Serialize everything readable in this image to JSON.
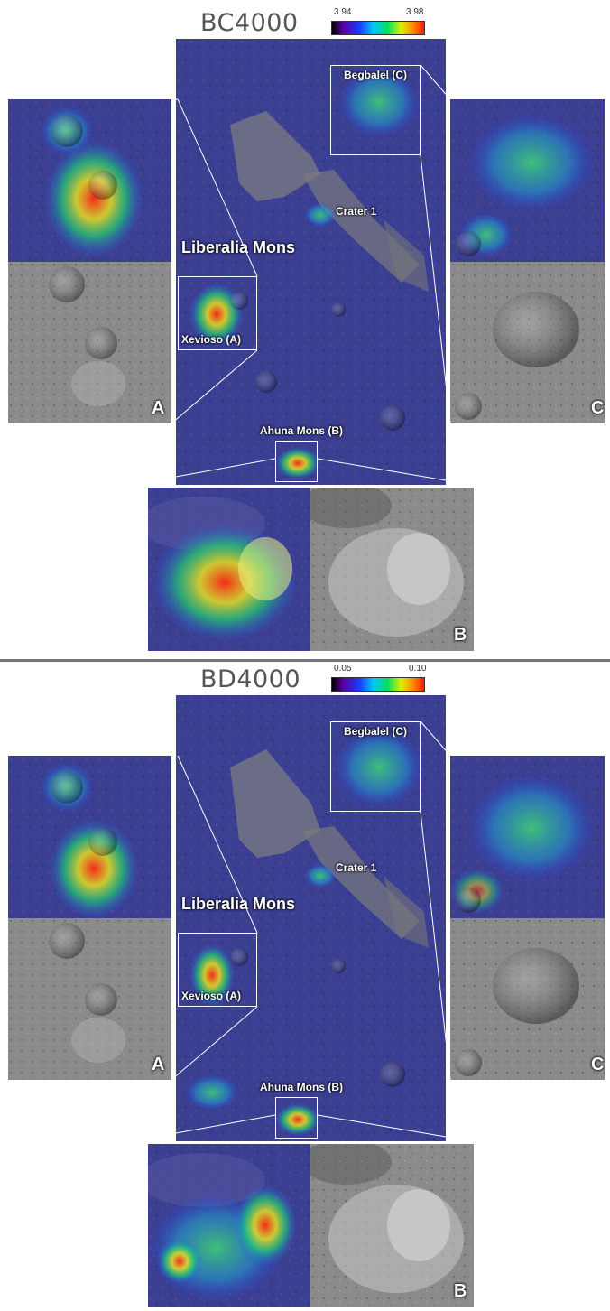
{
  "panels": [
    {
      "title": "BC4000",
      "scale_min": "3.94",
      "scale_max": "3.98",
      "labels": {
        "begbalel": "Begbalel (C)",
        "crater1": "Crater 1",
        "liberalia": "Liberalia Mons",
        "xevioso": "Xevioso (A)",
        "ahuna": "Ahuna Mons (B)"
      },
      "letters": {
        "a": "A",
        "b": "B",
        "c": "C"
      }
    },
    {
      "title": "BD4000",
      "scale_min": "0.05",
      "scale_max": "0.10",
      "labels": {
        "begbalel": "Begbalel (C)",
        "crater1": "Crater 1",
        "liberalia": "Liberalia Mons",
        "xevioso": "Xevioso (A)",
        "ahuna": "Ahuna Mons (B)"
      },
      "letters": {
        "a": "A",
        "b": "B",
        "c": "C"
      }
    }
  ],
  "colors": {
    "map_base": "#3a3f8f",
    "grey_base": "#8a8a8a",
    "frame": "#ffffff",
    "divider": "#777777"
  }
}
